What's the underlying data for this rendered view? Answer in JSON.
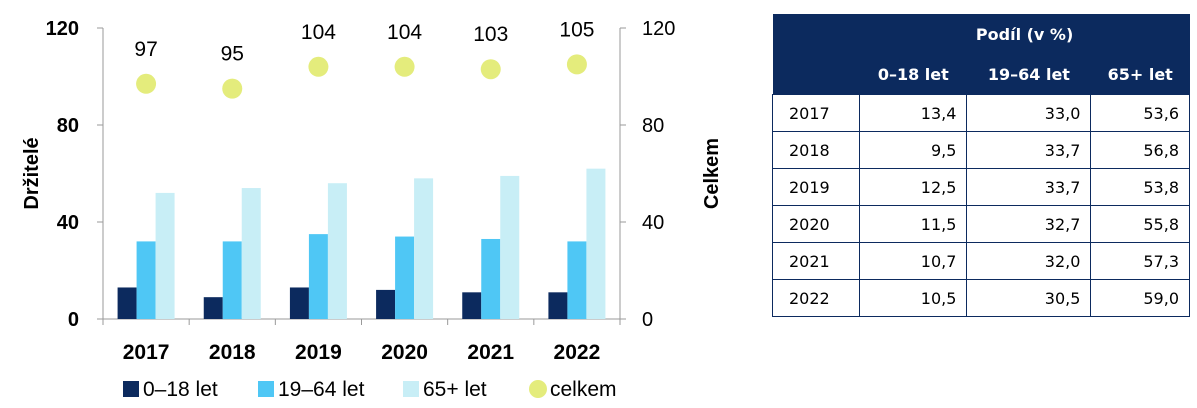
{
  "chart_data": {
    "type": "bar",
    "categories": [
      "2017",
      "2018",
      "2019",
      "2020",
      "2021",
      "2022"
    ],
    "series": [
      {
        "name": "0–18 let",
        "values": [
          13,
          9,
          13,
          12,
          11,
          11
        ],
        "color": "#0c2a5e",
        "axis": "left"
      },
      {
        "name": "19–64 let",
        "values": [
          32,
          32,
          35,
          34,
          33,
          32
        ],
        "color": "#4fc7f5",
        "axis": "left"
      },
      {
        "name": "65+ let",
        "values": [
          52,
          54,
          56,
          58,
          59,
          62
        ],
        "color": "#c8eef6",
        "axis": "left"
      },
      {
        "name": "celkem",
        "values": [
          97,
          95,
          104,
          104,
          103,
          105
        ],
        "color": "#e4ec7c",
        "axis": "right",
        "marker": "circle"
      }
    ],
    "ylabel": "Držitelé",
    "y2label": "Celkem",
    "ylim": [
      0,
      120
    ],
    "y2lim": [
      0,
      120
    ],
    "yticks": [
      "0",
      "40",
      "80",
      "120"
    ],
    "grid": false,
    "legend_position": "bottom"
  },
  "table": {
    "group_header": "Podíl (v %)",
    "columns": [
      "0–18 let",
      "19–64 let",
      "65+ let"
    ],
    "rows": [
      {
        "year": "2017",
        "values": [
          "13,4",
          "33,0",
          "53,6"
        ]
      },
      {
        "year": "2018",
        "values": [
          "9,5",
          "33,7",
          "56,8"
        ]
      },
      {
        "year": "2019",
        "values": [
          "12,5",
          "33,7",
          "53,8"
        ]
      },
      {
        "year": "2020",
        "values": [
          "11,5",
          "32,7",
          "55,8"
        ]
      },
      {
        "year": "2021",
        "values": [
          "10,7",
          "32,0",
          "57,3"
        ]
      },
      {
        "year": "2022",
        "values": [
          "10,5",
          "30,5",
          "59,0"
        ]
      }
    ]
  }
}
